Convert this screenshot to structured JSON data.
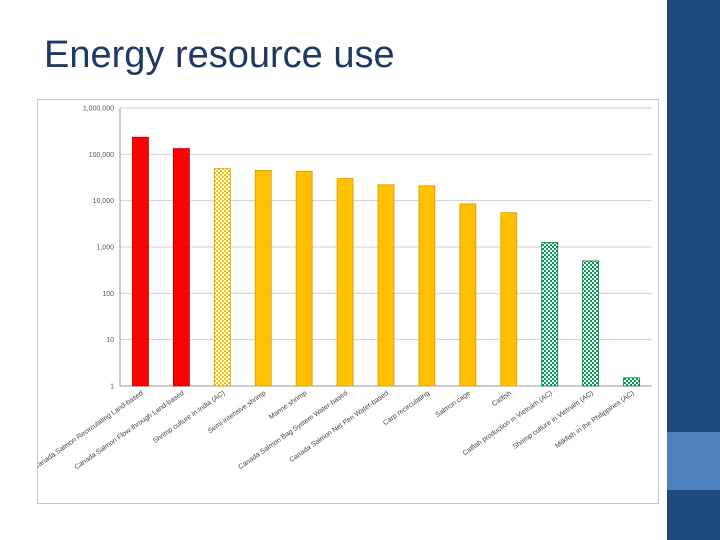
{
  "slide": {
    "title": "Energy resource use"
  },
  "colors": {
    "title": "#1f3864",
    "sidebar_dark": "#1f497d",
    "sidebar_light": "#4f81bd",
    "red": "#ff0000",
    "yellow": "#ffc000",
    "green": "#00a050"
  },
  "chart_data": {
    "type": "bar",
    "title": "",
    "xlabel": "",
    "ylabel": "",
    "y_scale": "log",
    "ylim": [
      1,
      1000000
    ],
    "y_tick_values": [
      1,
      10,
      100,
      1000,
      10000,
      100000,
      1000000
    ],
    "y_tick_labels": [
      "1",
      "10",
      "100",
      "1,000",
      "10,000",
      "100,000",
      "1,000,000"
    ],
    "grid": true,
    "categories": [
      "Canada Salmon Recirculating Land-based",
      "Canada Salmon Flow-through Land-based",
      "Shrimp culture in India (AC)",
      "Semi-intensive shrimp",
      "Marine shrimp",
      "Canada Salmon Bag System Water-based",
      "Canada Salmon Net Pen Water-based",
      "Carp recirculating",
      "Salmon cage",
      "Catfish",
      "Catfish production in Vietnam (AC)",
      "Shrimp culture in Vietnam (AC)",
      "Milkfish in the Philippines (AC)"
    ],
    "values": [
      233000,
      133000,
      49000,
      45000,
      43000,
      30000,
      22000,
      21000,
      8500,
      5500,
      1250,
      500,
      1.5
    ],
    "styles": [
      "red",
      "red",
      "yellow-pattern",
      "yellow",
      "yellow",
      "yellow",
      "yellow",
      "yellow",
      "yellow",
      "yellow",
      "green-pattern",
      "green-pattern",
      "green-pattern"
    ]
  }
}
